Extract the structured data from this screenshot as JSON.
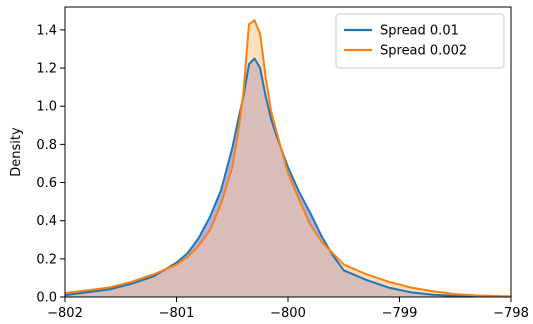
{
  "chart_data": {
    "type": "area",
    "xlabel": "",
    "ylabel": "Density",
    "xlim": [
      -802,
      -798
    ],
    "ylim": [
      0,
      1.52
    ],
    "x_ticks": [
      "−802",
      "−801",
      "−800",
      "−799",
      "−798"
    ],
    "x_tick_values": [
      -802,
      -801,
      -800,
      -799,
      -798
    ],
    "y_ticks": [
      "0.0",
      "0.2",
      "0.4",
      "0.6",
      "0.8",
      "1.0",
      "1.2",
      "1.4"
    ],
    "y_tick_values": [
      0,
      0.2,
      0.4,
      0.6,
      0.8,
      1.0,
      1.2,
      1.4
    ],
    "grid": false,
    "legend_position": "top-right",
    "series": [
      {
        "name": "Spread 0.01",
        "line_color": "#1f77b4",
        "fill_color": "#9aa3f0",
        "points": [
          [
            -802.0,
            0.01
          ],
          [
            -801.8,
            0.025
          ],
          [
            -801.6,
            0.04
          ],
          [
            -801.4,
            0.07
          ],
          [
            -801.2,
            0.11
          ],
          [
            -801.0,
            0.18
          ],
          [
            -800.9,
            0.23
          ],
          [
            -800.8,
            0.31
          ],
          [
            -800.7,
            0.42
          ],
          [
            -800.6,
            0.56
          ],
          [
            -800.5,
            0.78
          ],
          [
            -800.45,
            0.92
          ],
          [
            -800.4,
            1.05
          ],
          [
            -800.35,
            1.22
          ],
          [
            -800.3,
            1.25
          ],
          [
            -800.25,
            1.2
          ],
          [
            -800.2,
            1.05
          ],
          [
            -800.15,
            0.93
          ],
          [
            -800.1,
            0.84
          ],
          [
            -800.0,
            0.68
          ],
          [
            -799.9,
            0.55
          ],
          [
            -799.8,
            0.44
          ],
          [
            -799.7,
            0.32
          ],
          [
            -799.6,
            0.22
          ],
          [
            -799.5,
            0.14
          ],
          [
            -799.3,
            0.09
          ],
          [
            -799.1,
            0.05
          ],
          [
            -798.9,
            0.025
          ],
          [
            -798.7,
            0.012
          ],
          [
            -798.5,
            0.006
          ],
          [
            -798.3,
            0.003
          ],
          [
            -798.0,
            0.002
          ]
        ]
      },
      {
        "name": "Spread 0.002",
        "line_color": "#ff7f0e",
        "fill_color": "#ffc78a",
        "points": [
          [
            -802.0,
            0.02
          ],
          [
            -801.8,
            0.035
          ],
          [
            -801.6,
            0.05
          ],
          [
            -801.4,
            0.08
          ],
          [
            -801.2,
            0.12
          ],
          [
            -801.0,
            0.17
          ],
          [
            -800.9,
            0.21
          ],
          [
            -800.8,
            0.27
          ],
          [
            -800.7,
            0.35
          ],
          [
            -800.6,
            0.49
          ],
          [
            -800.5,
            0.68
          ],
          [
            -800.45,
            0.85
          ],
          [
            -800.4,
            1.07
          ],
          [
            -800.35,
            1.43
          ],
          [
            -800.3,
            1.45
          ],
          [
            -800.25,
            1.38
          ],
          [
            -800.2,
            1.15
          ],
          [
            -800.15,
            0.97
          ],
          [
            -800.1,
            0.86
          ],
          [
            -800.0,
            0.65
          ],
          [
            -799.9,
            0.51
          ],
          [
            -799.8,
            0.38
          ],
          [
            -799.7,
            0.29
          ],
          [
            -799.6,
            0.23
          ],
          [
            -799.5,
            0.17
          ],
          [
            -799.3,
            0.12
          ],
          [
            -799.1,
            0.08
          ],
          [
            -798.9,
            0.05
          ],
          [
            -798.7,
            0.03
          ],
          [
            -798.5,
            0.015
          ],
          [
            -798.3,
            0.008
          ],
          [
            -798.0,
            0.003
          ]
        ]
      }
    ],
    "overlap_fill_color": "#c9aeb3"
  }
}
